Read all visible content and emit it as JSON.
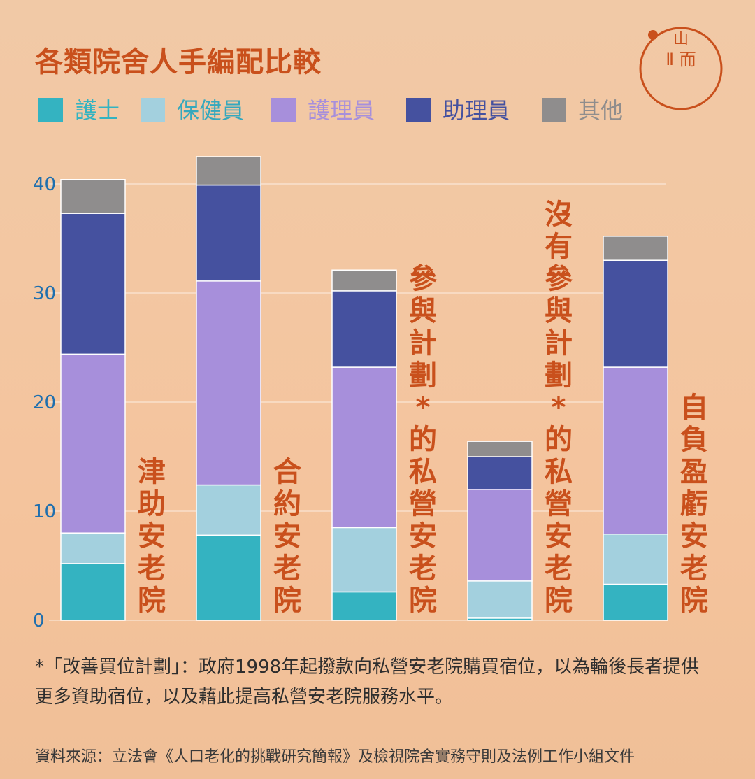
{
  "logo": {
    "line1": "山",
    "line2": "Ⅱ 而"
  },
  "chart_data": {
    "type": "bar",
    "stacked": true,
    "title": "各類院舍人手編配比較",
    "categories": [
      "津助安老院",
      "合約安老院",
      "參與計劃*的私營安老院",
      "沒有參與計劃*的私營安老院",
      "自負盈虧安老院"
    ],
    "series": [
      {
        "name": "護士",
        "color": "#34b3c1",
        "values": [
          5.2,
          7.8,
          2.6,
          0.2,
          3.3
        ]
      },
      {
        "name": "保健員",
        "color": "#a3d0de",
        "values": [
          2.8,
          4.6,
          5.9,
          3.4,
          4.6
        ]
      },
      {
        "name": "護理員",
        "color": "#a78fdb",
        "values": [
          16.4,
          18.7,
          14.7,
          8.4,
          15.3
        ]
      },
      {
        "name": "助理員",
        "color": "#45519f",
        "values": [
          12.9,
          8.8,
          7.0,
          3.0,
          9.8
        ]
      },
      {
        "name": "其他",
        "color": "#8f8d8d",
        "values": [
          3.1,
          2.6,
          1.9,
          1.4,
          2.2
        ]
      }
    ],
    "y_ticks": [
      0,
      10,
      20,
      30,
      40
    ],
    "ylim": [
      0,
      42.5
    ],
    "xlabel": "",
    "ylabel": "",
    "grid": true,
    "legend_position": "top"
  },
  "footnote": "*「改善買位計劃」：政府1998年起撥款向私營安老院購買宿位，以為輪後長者提供更多資助宿位，以及藉此提高私營安老院服務水平。",
  "source": "資料來源：立法會《人口老化的挑戰研究簡報》及檢視院舍實務守則及法例工作小組文件",
  "colors": {
    "title": "#c9501c",
    "category_label": "#c9501c",
    "axis_text": "#1f6fae"
  }
}
